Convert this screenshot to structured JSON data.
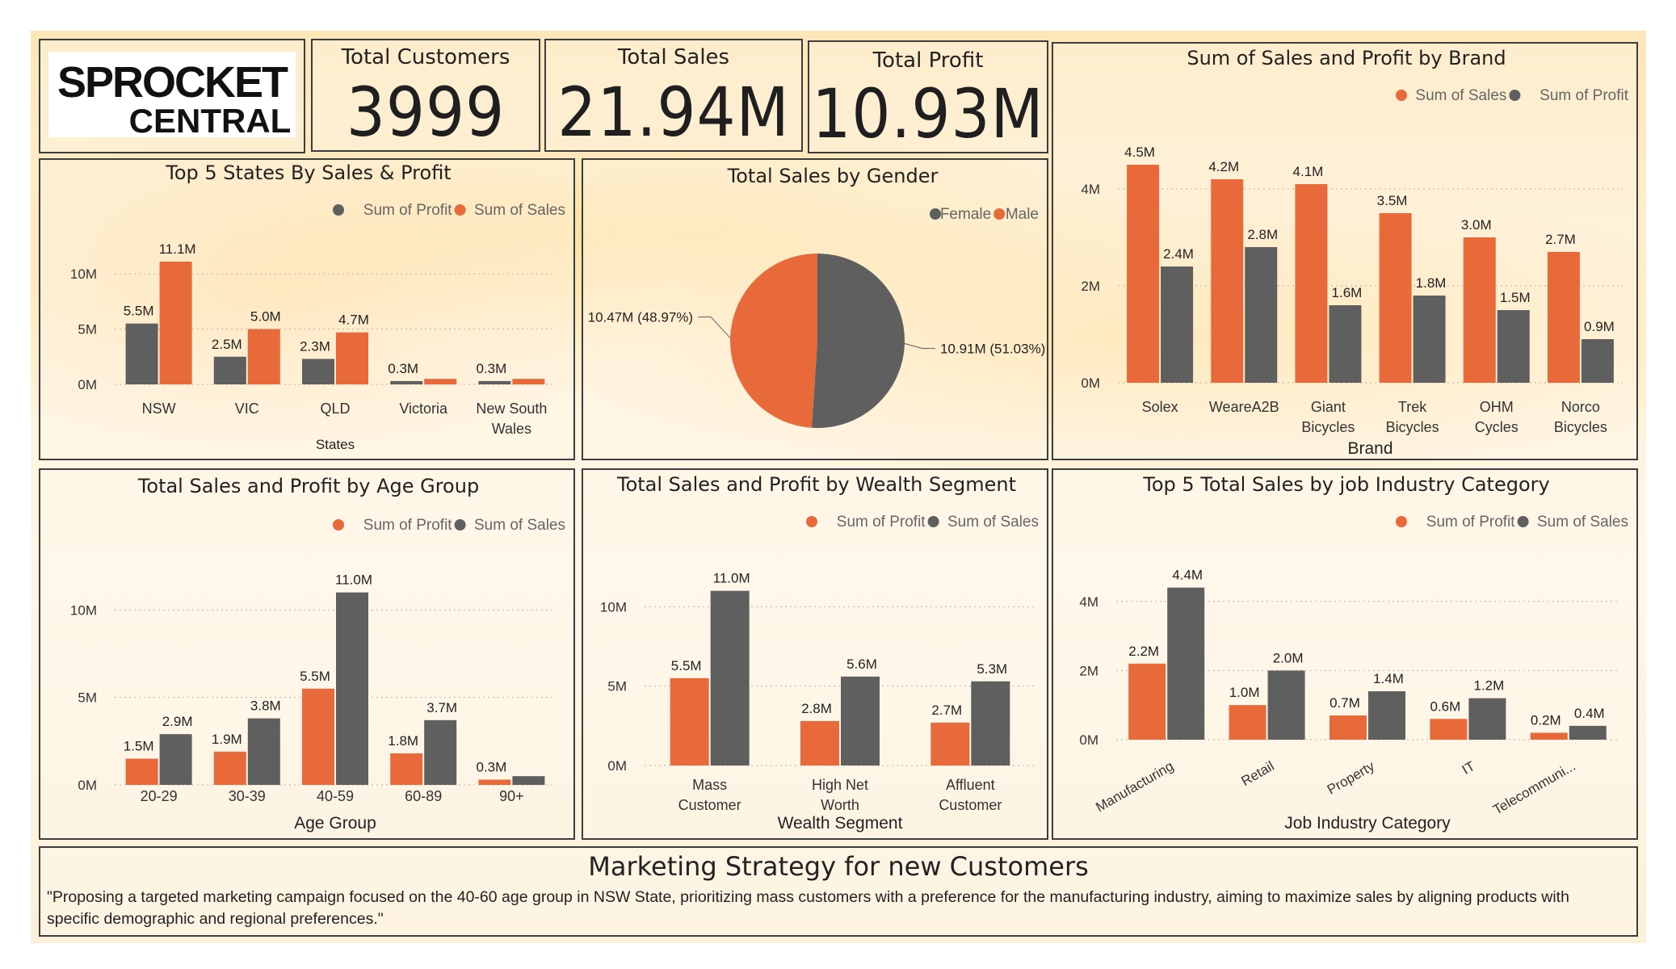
{
  "logo": {
    "line1": "SPROCKET",
    "line2": "CENTRAL"
  },
  "kpis": [
    {
      "title": "Total Customers",
      "value": "3999"
    },
    {
      "title": "Total Sales",
      "value": "21.94M"
    },
    {
      "title": "Total Profit",
      "value": "10.93M"
    }
  ],
  "colors": {
    "orange": "#e8693a",
    "grey": "#5f5f5f"
  },
  "strategy": {
    "title": "Marketing Strategy for new Customers",
    "body": "\"Proposing a targeted marketing campaign focused on the 40-60 age group in NSW State, prioritizing mass customers with a preference for the manufacturing industry, aiming to maximize sales by aligning products with specific demographic and regional preferences.\""
  },
  "chart_data": [
    {
      "id": "states",
      "type": "bar",
      "title": "Top 5 States By Sales & Profit",
      "xlabel": "States",
      "ylabel": "",
      "categories": [
        [
          "NSW"
        ],
        [
          "VIC"
        ],
        [
          "QLD"
        ],
        [
          "Victoria"
        ],
        [
          "New South",
          "Wales"
        ]
      ],
      "legend_position": "top-right",
      "legend": [
        {
          "name": "Sum of Profit",
          "color": "#5f5f5f"
        },
        {
          "name": "Sum of Sales",
          "color": "#e8693a"
        }
      ],
      "series": [
        {
          "name": "Sum of Profit",
          "color": "#5f5f5f",
          "values": [
            5.5,
            2.5,
            2.3,
            0.3,
            0.3
          ],
          "labels": [
            "5.5M",
            "2.5M",
            "2.3M",
            "0.3M",
            "0.3M"
          ]
        },
        {
          "name": "Sum of Sales",
          "color": "#e8693a",
          "values": [
            11.1,
            5.0,
            4.7,
            0.5,
            0.5
          ],
          "labels": [
            "11.1M",
            "5.0M",
            "4.7M",
            "",
            ""
          ]
        }
      ],
      "ylim": [
        0,
        13
      ],
      "yticks": [
        {
          "v": 0,
          "label": "0M"
        },
        {
          "v": 5,
          "label": "5M"
        },
        {
          "v": 10,
          "label": "10M"
        }
      ],
      "grid": true
    },
    {
      "id": "gender",
      "type": "pie",
      "title": "Total Sales by Gender",
      "legend_position": "top-right",
      "legend": [
        {
          "name": "Female",
          "color": "#5f5f5f"
        },
        {
          "name": "Male",
          "color": "#e8693a"
        }
      ],
      "slices": [
        {
          "name": "Female",
          "value": 10.91,
          "percent": 51.03,
          "label": "10.91M (51.03%)",
          "color": "#5f5f5f"
        },
        {
          "name": "Male",
          "value": 10.47,
          "percent": 48.97,
          "label": "10.47M (48.97%)",
          "color": "#e8693a"
        }
      ]
    },
    {
      "id": "brand",
      "type": "bar",
      "title": "Sum of Sales and Profit by Brand",
      "xlabel": "Brand",
      "ylabel": "",
      "categories": [
        [
          "Solex"
        ],
        [
          "WeareA2B"
        ],
        [
          "Giant",
          "Bicycles"
        ],
        [
          "Trek",
          "Bicycles"
        ],
        [
          "OHM",
          "Cycles"
        ],
        [
          "Norco",
          "Bicycles"
        ]
      ],
      "legend_position": "top-right",
      "legend": [
        {
          "name": "Sum of Sales",
          "color": "#e8693a"
        },
        {
          "name": "Sum of Profit",
          "color": "#5f5f5f"
        }
      ],
      "series": [
        {
          "name": "Sum of Sales",
          "color": "#e8693a",
          "values": [
            4.5,
            4.2,
            4.1,
            3.5,
            3.0,
            2.7
          ],
          "labels": [
            "4.5M",
            "4.2M",
            "4.1M",
            "3.5M",
            "3.0M",
            "2.7M"
          ]
        },
        {
          "name": "Sum of Profit",
          "color": "#5f5f5f",
          "values": [
            2.4,
            2.8,
            1.6,
            1.8,
            1.5,
            0.9
          ],
          "labels": [
            "2.4M",
            "2.8M",
            "1.6M",
            "1.8M",
            "1.5M",
            "0.9M"
          ]
        }
      ],
      "ylim": [
        0,
        5
      ],
      "yticks": [
        {
          "v": 0,
          "label": "0M"
        },
        {
          "v": 2,
          "label": "2M"
        },
        {
          "v": 4,
          "label": "4M"
        }
      ],
      "grid": true
    },
    {
      "id": "age",
      "type": "bar",
      "title": "Total Sales and Profit by Age Group",
      "xlabel": "Age Group",
      "ylabel": "",
      "categories": [
        [
          "20-29"
        ],
        [
          "30-39"
        ],
        [
          "40-59"
        ],
        [
          "60-89"
        ],
        [
          "90+"
        ]
      ],
      "legend_position": "top-right",
      "legend": [
        {
          "name": "Sum of Profit",
          "color": "#e8693a"
        },
        {
          "name": "Sum of Sales",
          "color": "#5f5f5f"
        }
      ],
      "series": [
        {
          "name": "Sum of Profit",
          "color": "#e8693a",
          "values": [
            1.5,
            1.9,
            5.5,
            1.8,
            0.3
          ],
          "labels": [
            "1.5M",
            "1.9M",
            "5.5M",
            "1.8M",
            "0.3M"
          ]
        },
        {
          "name": "Sum of Sales",
          "color": "#5f5f5f",
          "values": [
            2.9,
            3.8,
            11.0,
            3.7,
            0.5
          ],
          "labels": [
            "2.9M",
            "3.8M",
            "11.0M",
            "3.7M",
            ""
          ]
        }
      ],
      "ylim": [
        0,
        12
      ],
      "yticks": [
        {
          "v": 0,
          "label": "0M"
        },
        {
          "v": 5,
          "label": "5M"
        },
        {
          "v": 10,
          "label": "10M"
        }
      ],
      "grid": true
    },
    {
      "id": "wealth",
      "type": "bar",
      "title": "Total Sales and Profit by Wealth Segment",
      "xlabel": "Wealth Segment",
      "ylabel": "",
      "categories": [
        [
          "Mass",
          "Customer"
        ],
        [
          "High Net",
          "Worth"
        ],
        [
          "Affluent",
          "Customer"
        ]
      ],
      "legend_position": "top-right",
      "legend": [
        {
          "name": "Sum of Profit",
          "color": "#e8693a"
        },
        {
          "name": "Sum of Sales",
          "color": "#5f5f5f"
        }
      ],
      "series": [
        {
          "name": "Sum of Profit",
          "color": "#e8693a",
          "values": [
            5.5,
            2.8,
            2.7
          ],
          "labels": [
            "5.5M",
            "2.8M",
            "2.7M"
          ]
        },
        {
          "name": "Sum of Sales",
          "color": "#5f5f5f",
          "values": [
            11.0,
            5.6,
            5.3
          ],
          "labels": [
            "11.0M",
            "5.6M",
            "5.3M"
          ]
        }
      ],
      "ylim": [
        0,
        12
      ],
      "yticks": [
        {
          "v": 0,
          "label": "0M"
        },
        {
          "v": 5,
          "label": "5M"
        },
        {
          "v": 10,
          "label": "10M"
        }
      ],
      "grid": true
    },
    {
      "id": "industry",
      "type": "bar",
      "title": "Top 5 Total Sales by job Industry Category",
      "xlabel": "Job Industry Category",
      "ylabel": "",
      "categories": [
        [
          "Manufacturing"
        ],
        [
          "Retail"
        ],
        [
          "Property"
        ],
        [
          "IT"
        ],
        [
          "Telecommuni..."
        ]
      ],
      "rotated_labels": true,
      "legend_position": "top-right",
      "legend": [
        {
          "name": "Sum of Profit",
          "color": "#e8693a"
        },
        {
          "name": "Sum of Sales",
          "color": "#5f5f5f"
        }
      ],
      "series": [
        {
          "name": "Sum of Profit",
          "color": "#e8693a",
          "values": [
            2.2,
            1.0,
            0.7,
            0.6,
            0.2
          ],
          "labels": [
            "2.2M",
            "1.0M",
            "0.7M",
            "0.6M",
            "0.2M"
          ]
        },
        {
          "name": "Sum of Sales",
          "color": "#5f5f5f",
          "values": [
            4.4,
            2.0,
            1.4,
            1.2,
            0.4
          ],
          "labels": [
            "4.4M",
            "2.0M",
            "1.4M",
            "1.2M",
            "0.4M"
          ]
        }
      ],
      "ylim": [
        0,
        5
      ],
      "yticks": [
        {
          "v": 0,
          "label": "0M"
        },
        {
          "v": 2,
          "label": "2M"
        },
        {
          "v": 4,
          "label": "4M"
        }
      ],
      "grid": true
    }
  ]
}
